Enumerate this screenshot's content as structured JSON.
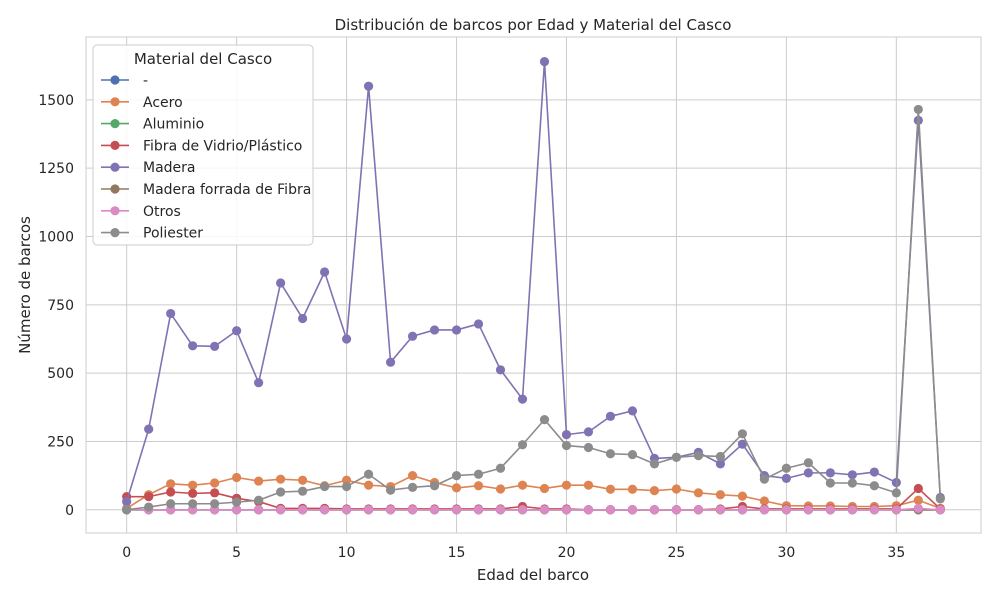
{
  "chart_data": {
    "type": "line",
    "title": "Distribución de barcos por Edad y Material del Casco",
    "xlabel": "Edad del barco",
    "ylabel": "Número de barcos",
    "xlim": [
      -1.85,
      38.85
    ],
    "ylim": [
      -85,
      1730
    ],
    "xticks": [
      0,
      5,
      10,
      15,
      20,
      25,
      30,
      35
    ],
    "yticks": [
      0,
      250,
      500,
      750,
      1000,
      1250,
      1500
    ],
    "grid": true,
    "legend": {
      "title": "Material del Casco",
      "placement": "top-left"
    },
    "x": [
      0,
      1,
      2,
      3,
      4,
      5,
      6,
      7,
      8,
      9,
      10,
      11,
      12,
      13,
      14,
      15,
      16,
      17,
      18,
      19,
      20,
      21,
      22,
      23,
      24,
      25,
      26,
      27,
      28,
      29,
      30,
      31,
      32,
      33,
      34,
      35,
      36,
      37
    ],
    "series": [
      {
        "name": "-",
        "color": "#4c72b0",
        "values": [
          0,
          0,
          0,
          0,
          0,
          0,
          0,
          0,
          0,
          0,
          0,
          0,
          0,
          0,
          0,
          0,
          0,
          0,
          0,
          0,
          0,
          0,
          0,
          0,
          0,
          0,
          0,
          0,
          0,
          0,
          0,
          0,
          0,
          0,
          0,
          0,
          0,
          0
        ]
      },
      {
        "name": "Acero",
        "color": "#dd8452",
        "values": [
          5,
          55,
          95,
          90,
          98,
          118,
          105,
          112,
          108,
          88,
          108,
          90,
          85,
          125,
          100,
          80,
          88,
          76,
          90,
          78,
          90,
          90,
          75,
          75,
          70,
          76,
          62,
          55,
          50,
          32,
          15,
          14,
          14,
          12,
          12,
          15,
          35,
          5
        ]
      },
      {
        "name": "Aluminio",
        "color": "#55a868",
        "values": [
          0,
          0,
          0,
          0,
          0,
          0,
          0,
          0,
          0,
          0,
          0,
          0,
          0,
          0,
          0,
          0,
          0,
          0,
          0,
          0,
          0,
          0,
          0,
          0,
          0,
          0,
          0,
          0,
          0,
          0,
          0,
          0,
          0,
          0,
          0,
          0,
          0,
          0
        ]
      },
      {
        "name": "Fibra de Vidrio/Plástico",
        "color": "#c44e52",
        "values": [
          48,
          48,
          65,
          60,
          62,
          42,
          30,
          5,
          5,
          5,
          3,
          3,
          3,
          3,
          3,
          3,
          3,
          3,
          12,
          3,
          3,
          0,
          0,
          0,
          0,
          0,
          0,
          3,
          12,
          3,
          3,
          3,
          3,
          3,
          3,
          3,
          78,
          3
        ]
      },
      {
        "name": "Madera",
        "color": "#8172b3",
        "values": [
          30,
          295,
          718,
          600,
          598,
          655,
          465,
          830,
          700,
          870,
          625,
          1550,
          540,
          635,
          658,
          658,
          680,
          512,
          405,
          1640,
          275,
          285,
          342,
          362,
          188,
          192,
          210,
          168,
          240,
          125,
          115,
          135,
          135,
          128,
          138,
          100,
          1425,
          45
        ]
      },
      {
        "name": "Madera forrada de Fibra",
        "color": "#937860",
        "values": [
          0,
          0,
          0,
          0,
          0,
          0,
          0,
          0,
          0,
          0,
          0,
          0,
          0,
          0,
          0,
          0,
          0,
          0,
          0,
          0,
          0,
          0,
          0,
          0,
          0,
          0,
          0,
          0,
          0,
          0,
          0,
          0,
          0,
          0,
          0,
          0,
          0,
          0
        ]
      },
      {
        "name": "Otros",
        "color": "#da8bc3",
        "values": [
          0,
          0,
          0,
          0,
          0,
          0,
          0,
          0,
          0,
          0,
          0,
          0,
          0,
          0,
          0,
          0,
          0,
          0,
          0,
          0,
          0,
          0,
          0,
          0,
          0,
          0,
          0,
          0,
          0,
          0,
          0,
          0,
          0,
          0,
          0,
          0,
          5,
          0
        ]
      },
      {
        "name": "Poliester",
        "color": "#8c8c8c",
        "values": [
          0,
          10,
          22,
          22,
          22,
          28,
          35,
          65,
          68,
          85,
          85,
          130,
          72,
          82,
          88,
          125,
          130,
          152,
          238,
          330,
          235,
          228,
          205,
          202,
          168,
          192,
          198,
          195,
          278,
          112,
          152,
          172,
          98,
          98,
          88,
          62,
          1465,
          40
        ]
      }
    ]
  }
}
